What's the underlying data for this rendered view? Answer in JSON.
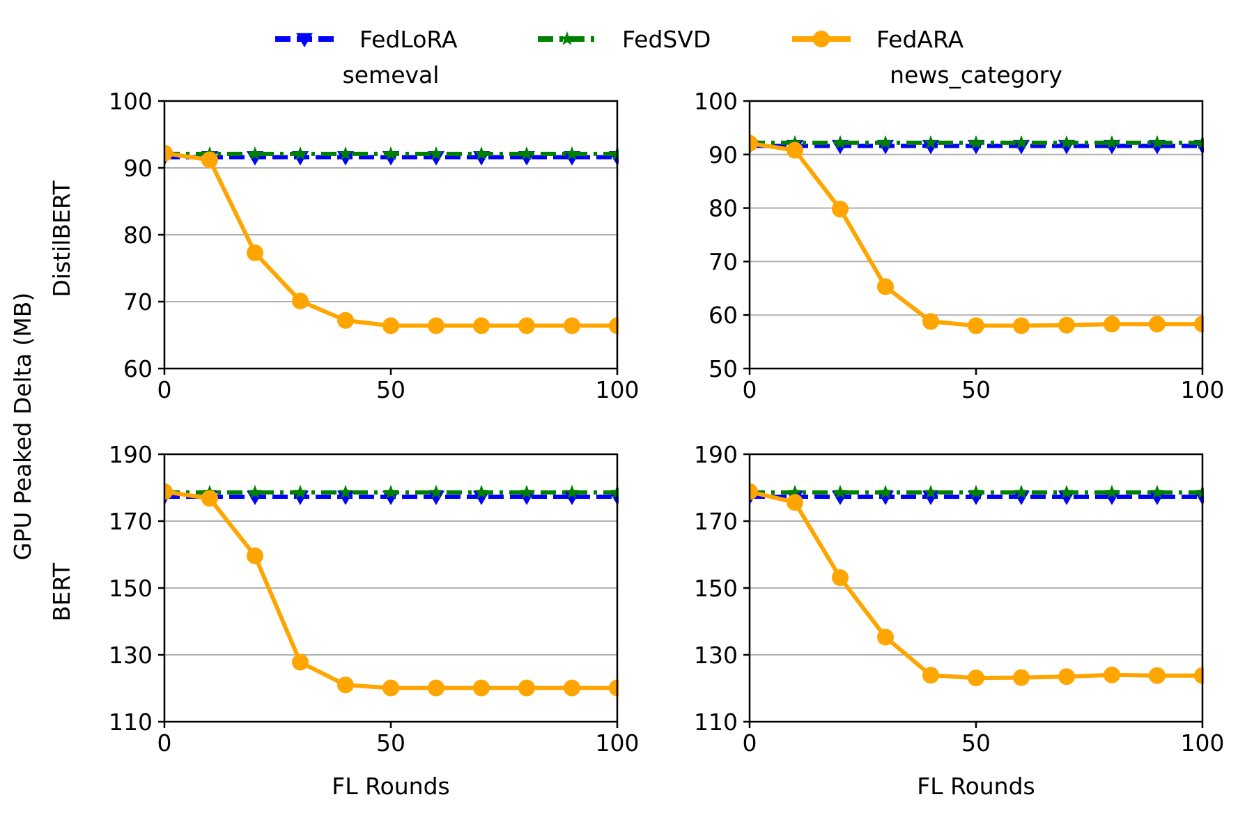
{
  "legend": {
    "position": "top-center",
    "entries": [
      {
        "name": "FedLoRA",
        "color": "#0000ff",
        "marker": "triangle-down",
        "linestyle": "dashed"
      },
      {
        "name": "FedSVD",
        "color": "#008000",
        "marker": "star",
        "linestyle": "dashdot"
      },
      {
        "name": "FedARA",
        "color": "#ffa500",
        "marker": "circle",
        "linestyle": "solid"
      }
    ]
  },
  "shared_ylabel": "GPU Peaked Delta (MB)",
  "row_labels": [
    "DistilBERT",
    "BERT"
  ],
  "chart_data": [
    {
      "type": "line",
      "title": "semeval",
      "row": 0,
      "col": 0,
      "row_label": "DistilBERT",
      "xlabel": "",
      "ylabel": "",
      "xlim": [
        0,
        100
      ],
      "ylim": [
        60,
        100
      ],
      "xticks": [
        0,
        50,
        100
      ],
      "yticks": [
        60,
        70,
        80,
        90,
        100
      ],
      "grid": "y",
      "x": [
        0,
        10,
        20,
        30,
        40,
        50,
        60,
        70,
        80,
        90,
        100
      ],
      "series": [
        {
          "name": "FedLoRA",
          "values": [
            91.6,
            91.6,
            91.6,
            91.6,
            91.6,
            91.6,
            91.6,
            91.6,
            91.6,
            91.6,
            91.6
          ]
        },
        {
          "name": "FedSVD",
          "values": [
            92.1,
            92.1,
            92.1,
            92.1,
            92.1,
            92.1,
            92.1,
            92.1,
            92.1,
            92.1,
            92.1
          ]
        },
        {
          "name": "FedARA",
          "values": [
            92.2,
            91.2,
            77.3,
            70.1,
            67.2,
            66.4,
            66.4,
            66.4,
            66.4,
            66.4,
            66.4
          ]
        }
      ]
    },
    {
      "type": "line",
      "title": "news_category",
      "row": 0,
      "col": 1,
      "xlabel": "",
      "ylabel": "",
      "xlim": [
        0,
        100
      ],
      "ylim": [
        50,
        100
      ],
      "xticks": [
        0,
        50,
        100
      ],
      "yticks": [
        50,
        60,
        70,
        80,
        90,
        100
      ],
      "grid": "y",
      "x": [
        0,
        10,
        20,
        30,
        40,
        50,
        60,
        70,
        80,
        90,
        100
      ],
      "series": [
        {
          "name": "FedLoRA",
          "values": [
            91.6,
            91.6,
            91.6,
            91.6,
            91.6,
            91.6,
            91.6,
            91.6,
            91.6,
            91.6,
            91.6
          ]
        },
        {
          "name": "FedSVD",
          "values": [
            92.2,
            92.2,
            92.2,
            92.2,
            92.2,
            92.2,
            92.2,
            92.2,
            92.2,
            92.2,
            92.2
          ]
        },
        {
          "name": "FedARA",
          "values": [
            92.1,
            90.8,
            79.8,
            65.3,
            58.8,
            58.0,
            58.0,
            58.1,
            58.3,
            58.3,
            58.3
          ]
        }
      ]
    },
    {
      "type": "line",
      "title": "",
      "row": 1,
      "col": 0,
      "row_label": "BERT",
      "xlabel": "FL Rounds",
      "ylabel": "",
      "xlim": [
        0,
        100
      ],
      "ylim": [
        110,
        190
      ],
      "xticks": [
        0,
        50,
        100
      ],
      "yticks": [
        110,
        130,
        150,
        170,
        190
      ],
      "grid": "y",
      "x": [
        0,
        10,
        20,
        30,
        40,
        50,
        60,
        70,
        80,
        90,
        100
      ],
      "series": [
        {
          "name": "FedLoRA",
          "values": [
            177.3,
            177.3,
            177.3,
            177.3,
            177.3,
            177.3,
            177.3,
            177.3,
            177.3,
            177.3,
            177.3
          ]
        },
        {
          "name": "FedSVD",
          "values": [
            178.6,
            178.6,
            178.6,
            178.6,
            178.6,
            178.6,
            178.6,
            178.6,
            178.6,
            178.6,
            178.6
          ]
        },
        {
          "name": "FedARA",
          "values": [
            178.8,
            176.8,
            159.6,
            127.8,
            121.0,
            120.1,
            120.1,
            120.1,
            120.1,
            120.1,
            120.1
          ]
        }
      ]
    },
    {
      "type": "line",
      "title": "",
      "row": 1,
      "col": 1,
      "xlabel": "FL Rounds",
      "ylabel": "",
      "xlim": [
        0,
        100
      ],
      "ylim": [
        110,
        190
      ],
      "xticks": [
        0,
        50,
        100
      ],
      "yticks": [
        110,
        130,
        150,
        170,
        190
      ],
      "grid": "y",
      "x": [
        0,
        10,
        20,
        30,
        40,
        50,
        60,
        70,
        80,
        90,
        100
      ],
      "series": [
        {
          "name": "FedLoRA",
          "values": [
            177.3,
            177.3,
            177.3,
            177.3,
            177.3,
            177.3,
            177.3,
            177.3,
            177.3,
            177.3,
            177.3
          ]
        },
        {
          "name": "FedSVD",
          "values": [
            178.6,
            178.6,
            178.6,
            178.6,
            178.6,
            178.6,
            178.6,
            178.6,
            178.6,
            178.6,
            178.6
          ]
        },
        {
          "name": "FedARA",
          "values": [
            178.8,
            175.6,
            153.1,
            135.3,
            123.9,
            123.1,
            123.2,
            123.5,
            124.0,
            123.8,
            123.8
          ]
        }
      ]
    }
  ]
}
